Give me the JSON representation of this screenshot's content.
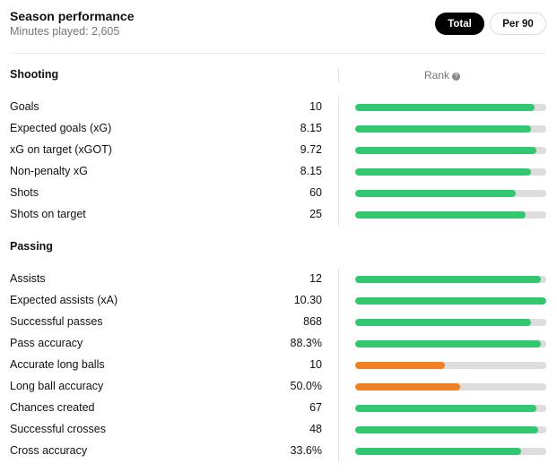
{
  "header": {
    "title": "Season performance",
    "subtitle": "Minutes played: 2,605",
    "buttons": [
      {
        "label": "Total",
        "active": true
      },
      {
        "label": "Per 90",
        "active": false
      }
    ]
  },
  "rank_label": "Rank",
  "rank_help_icon": "?",
  "colors": {
    "good": "#33c771",
    "weak": "#f08022",
    "track": "#dddddd"
  },
  "sections": [
    {
      "title": "Shooting",
      "rows": [
        {
          "label": "Goals",
          "value": "10",
          "rank": 0.94,
          "tier": "good"
        },
        {
          "label": "Expected goals (xG)",
          "value": "8.15",
          "rank": 0.92,
          "tier": "good"
        },
        {
          "label": "xG on target (xGOT)",
          "value": "9.72",
          "rank": 0.95,
          "tier": "good"
        },
        {
          "label": "Non-penalty xG",
          "value": "8.15",
          "rank": 0.92,
          "tier": "good"
        },
        {
          "label": "Shots",
          "value": "60",
          "rank": 0.84,
          "tier": "good"
        },
        {
          "label": "Shots on target",
          "value": "25",
          "rank": 0.89,
          "tier": "good"
        }
      ]
    },
    {
      "title": "Passing",
      "rows": [
        {
          "label": "Assists",
          "value": "12",
          "rank": 0.97,
          "tier": "good"
        },
        {
          "label": "Expected assists (xA)",
          "value": "10.30",
          "rank": 1.0,
          "tier": "good"
        },
        {
          "label": "Successful passes",
          "value": "868",
          "rank": 0.92,
          "tier": "good"
        },
        {
          "label": "Pass accuracy",
          "value": "88.3%",
          "rank": 0.97,
          "tier": "good"
        },
        {
          "label": "Accurate long balls",
          "value": "10",
          "rank": 0.47,
          "tier": "weak"
        },
        {
          "label": "Long ball accuracy",
          "value": "50.0%",
          "rank": 0.55,
          "tier": "weak"
        },
        {
          "label": "Chances created",
          "value": "67",
          "rank": 0.95,
          "tier": "good"
        },
        {
          "label": "Successful crosses",
          "value": "48",
          "rank": 0.96,
          "tier": "good"
        },
        {
          "label": "Cross accuracy",
          "value": "33.6%",
          "rank": 0.87,
          "tier": "good"
        }
      ]
    }
  ]
}
